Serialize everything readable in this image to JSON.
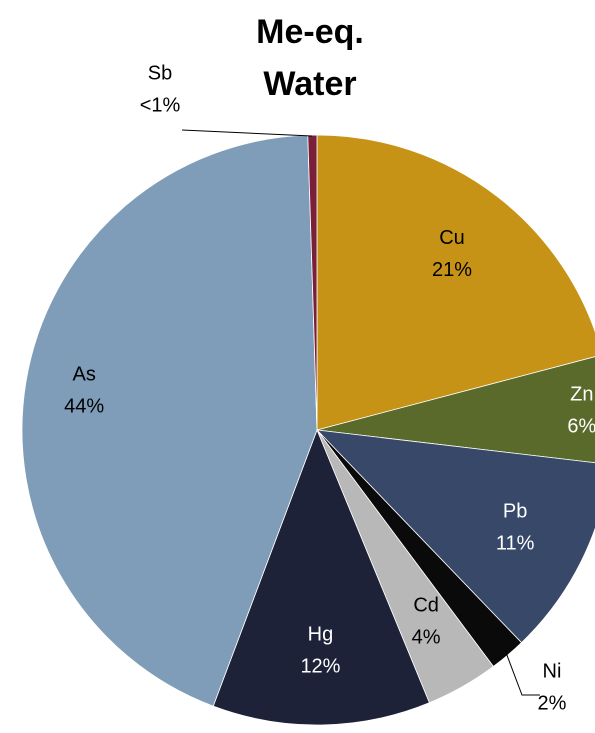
{
  "chart_data": {
    "type": "pie",
    "title": [
      "Me-eq.",
      "Water"
    ],
    "categories": [
      "Cu",
      "Zn",
      "Pb",
      "Ni",
      "Cd",
      "Hg",
      "As",
      "Sb"
    ],
    "values": [
      21,
      6,
      11,
      2,
      4,
      12,
      44,
      0.5
    ],
    "value_labels": [
      "21%",
      "6%",
      "11%",
      "2%",
      "4%",
      "12%",
      "44%",
      "<1%"
    ],
    "colors": [
      "#c79316",
      "#5a6a2a",
      "#374869",
      "#0a0a0a",
      "#b8b8b8",
      "#1d2238",
      "#7f9db8",
      "#7a1f3a"
    ]
  }
}
